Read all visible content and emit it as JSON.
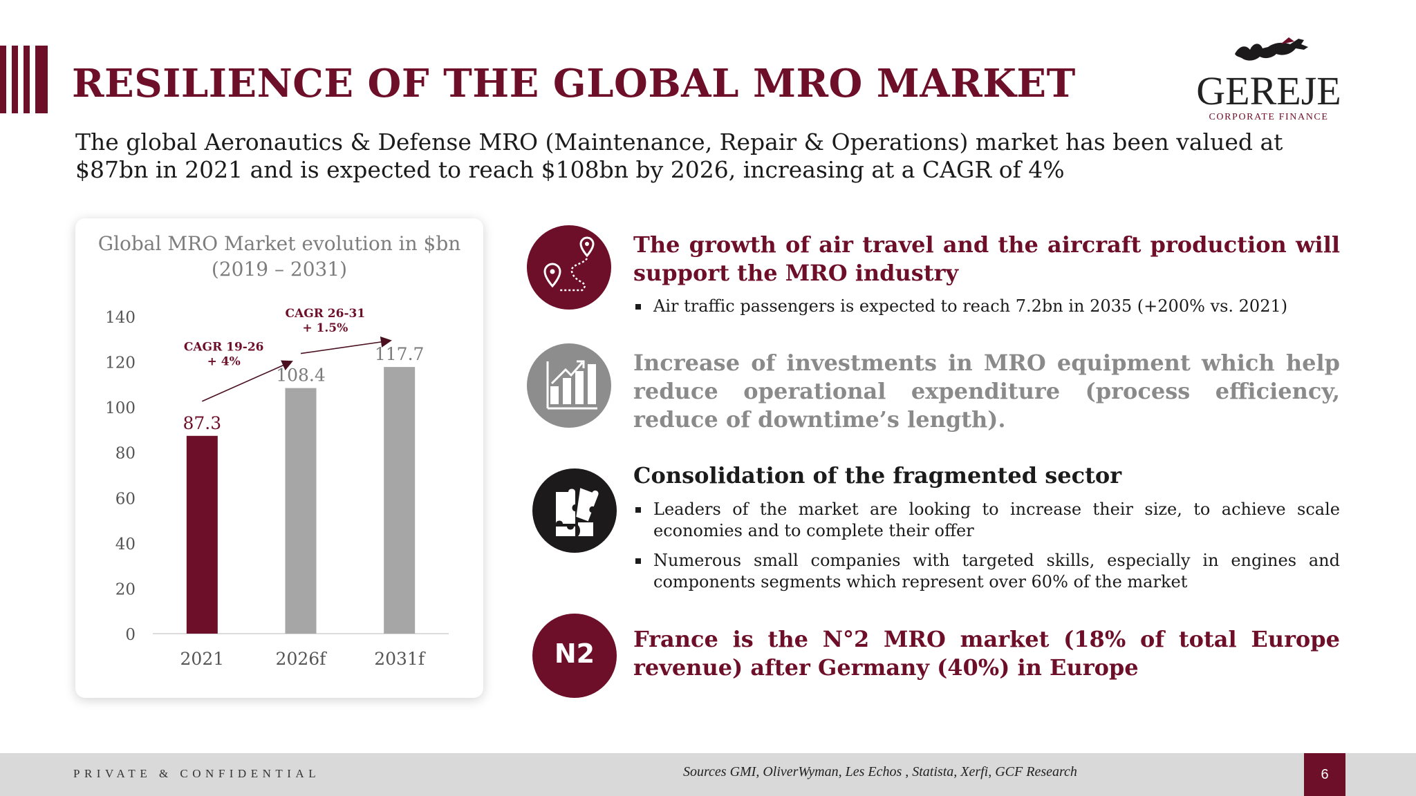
{
  "header": {
    "title": "RESILIENCE OF THE GLOBAL MRO MARKET",
    "subtitle": "The global Aeronautics & Defense MRO (Maintenance, Repair & Operations) market has been valued at $87bn in 2021 and is expected to reach $108bn by 2026, increasing at a CAGR of 4%"
  },
  "logo": {
    "name": "GEREJE",
    "tagline": "CORPORATE FINANCE"
  },
  "chart_data": {
    "type": "bar",
    "title": "Global MRO Market evolution in $bn (2019 – 2031)",
    "title_lines": [
      "Global MRO Market evolution in $bn",
      "(2019 – 2031)"
    ],
    "categories": [
      "2021",
      "2026f",
      "2031f"
    ],
    "values": [
      87.3,
      108.4,
      117.7
    ],
    "value_labels": [
      "87.3",
      "108.4",
      "117.7"
    ],
    "ylim": [
      0,
      140
    ],
    "yticks": [
      0,
      20,
      40,
      60,
      80,
      100,
      120,
      140
    ],
    "bar_colors": [
      "#6e0f2a",
      "#a6a6a6",
      "#a6a6a6"
    ],
    "grid": false,
    "annotations": [
      {
        "line1": "CAGR 19-26",
        "line2": "+ 4%"
      },
      {
        "line1": "CAGR 26-31",
        "line2": "+ 1.5%"
      }
    ]
  },
  "items": [
    {
      "icon": "map-route-icon",
      "heading": "The growth of air travel and the aircraft production will support the MRO industry",
      "bullets": [
        "Air traffic passengers is expected to reach 7.2bn in 2035 (+200% vs. 2021)"
      ]
    },
    {
      "icon": "growth-chart-icon",
      "heading": "Increase of investments in MRO equipment which help reduce operational expenditure (process efficiency, reduce of downtime’s length).",
      "bullets": []
    },
    {
      "icon": "puzzle-icon",
      "heading": "Consolidation of the fragmented sector",
      "bullets": [
        "Leaders of the market are looking to increase their size, to achieve scale economies and to complete their offer",
        "Numerous small companies with targeted skills, especially in engines and components segments which represent over 60% of the market"
      ]
    },
    {
      "icon_text": "N2",
      "heading": "France is the N°2 MRO market (18% of total Europe revenue) after Germany (40%) in Europe",
      "bullets": []
    }
  ],
  "colors": {
    "brand": "#6e0f2a",
    "gray": "#8a8a8a",
    "bar_gray": "#a6a6a6",
    "dark": "#1c1a1a"
  },
  "footer": {
    "confidential": "PRIVATE & CONFIDENTIAL",
    "sources": "Sources GMI, OliverWyman, Les Echos , Statista, Xerfi, GCF Research",
    "page": "6"
  }
}
